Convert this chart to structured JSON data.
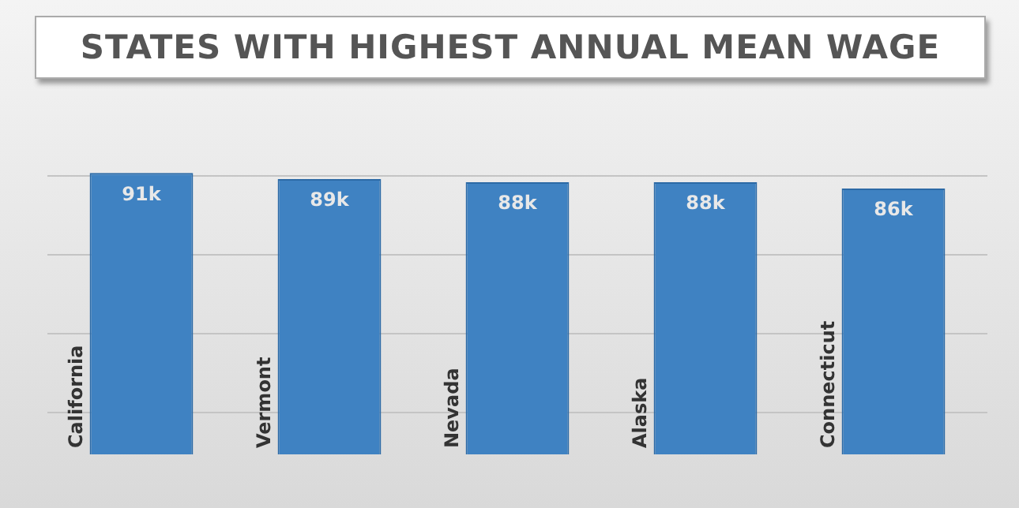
{
  "chart_data": {
    "type": "bar",
    "title": "STATES WITH HIGHEST ANNUAL MEAN WAGE",
    "categories": [
      "California",
      "Vermont",
      "Nevada",
      "Alaska",
      "Connecticut"
    ],
    "values": [
      91,
      89,
      88,
      88,
      86
    ],
    "value_labels": [
      "91k",
      "89k",
      "88k",
      "88k",
      "86k"
    ],
    "color": "#3f82c2",
    "yticks": [
      {
        "value": 13.5,
        "label": null
      },
      {
        "value": 39,
        "label": null
      },
      {
        "value": 64.5,
        "label": null
      },
      {
        "value": 90,
        "label": null
      }
    ],
    "grid": "y",
    "legend": false,
    "tick_labels": false
  }
}
